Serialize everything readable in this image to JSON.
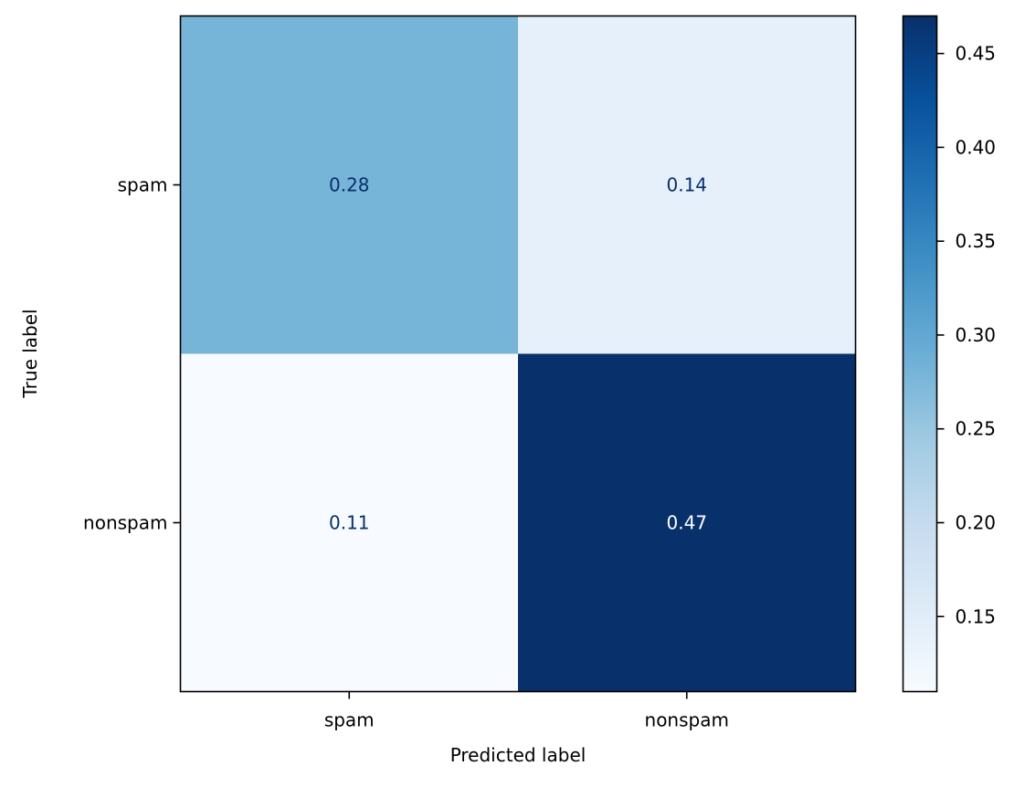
{
  "chart_data": {
    "type": "heatmap",
    "title": "",
    "xlabel": "Predicted label",
    "ylabel": "True label",
    "x_categories": [
      "spam",
      "nonspam"
    ],
    "y_categories": [
      "spam",
      "nonspam"
    ],
    "values": [
      [
        0.28,
        0.14
      ],
      [
        0.11,
        0.47
      ]
    ],
    "cell_labels": [
      [
        "0.28",
        "0.14"
      ],
      [
        "0.11",
        "0.47"
      ]
    ],
    "colormap": "Blues",
    "color_range": [
      0.11,
      0.47
    ],
    "colorbar_ticks": [
      0.15,
      0.2,
      0.25,
      0.3,
      0.35,
      0.4,
      0.45
    ],
    "colorbar_tick_labels": [
      "0.15",
      "0.20",
      "0.25",
      "0.30",
      "0.35",
      "0.40",
      "0.45"
    ],
    "light_text_color": "#ffffff",
    "dark_text_color": "#08306b",
    "grid": false,
    "legend": "colorbar-right"
  }
}
